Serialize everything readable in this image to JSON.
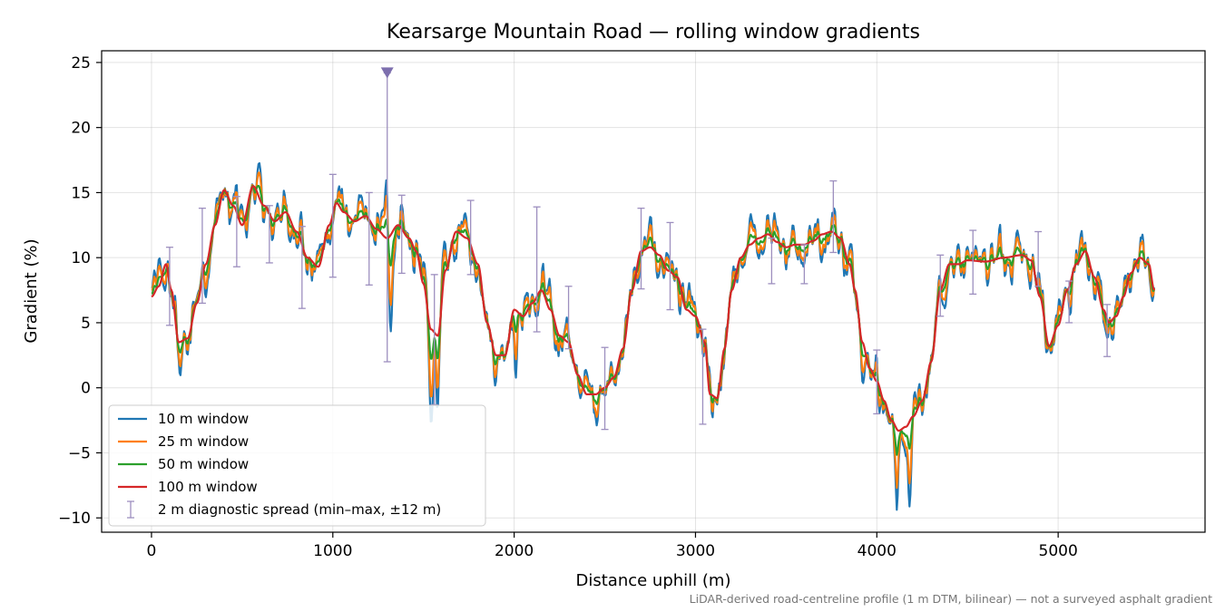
{
  "chart_data": {
    "type": "line",
    "title": "Kearsarge Mountain Road — rolling window gradients",
    "xlabel": "Distance uphill (m)",
    "ylabel": "Gradient (%)",
    "footnote": "LiDAR-derived road-centreline profile (1 m DTM, bilinear) — not a surveyed asphalt gradient",
    "xlim": [
      -275,
      5810
    ],
    "ylim": [
      -11.1,
      25.9
    ],
    "xticks": [
      0,
      1000,
      2000,
      3000,
      4000,
      5000
    ],
    "yticks": [
      -10,
      -5,
      0,
      5,
      10,
      15,
      20,
      25
    ],
    "xtick_labels": [
      "0",
      "1000",
      "2000",
      "3000",
      "4000",
      "5000"
    ],
    "ytick_labels": [
      "−10",
      "−5",
      "0",
      "5",
      "10",
      "15",
      "20",
      "25"
    ],
    "grid": true,
    "legend_position": "lower-left",
    "base_profile": [
      [
        0,
        7.0
      ],
      [
        40,
        7.8
      ],
      [
        80,
        9.5
      ],
      [
        110,
        7.5
      ],
      [
        150,
        3.5
      ],
      [
        200,
        3.8
      ],
      [
        250,
        6.5
      ],
      [
        300,
        9.5
      ],
      [
        350,
        12.5
      ],
      [
        400,
        15.2
      ],
      [
        450,
        14.0
      ],
      [
        500,
        12.5
      ],
      [
        560,
        15.5
      ],
      [
        620,
        14.0
      ],
      [
        680,
        12.8
      ],
      [
        740,
        13.5
      ],
      [
        800,
        12.0
      ],
      [
        860,
        10.0
      ],
      [
        920,
        9.3
      ],
      [
        980,
        12.5
      ],
      [
        1020,
        14.2
      ],
      [
        1060,
        13.5
      ],
      [
        1120,
        12.8
      ],
      [
        1180,
        13.2
      ],
      [
        1240,
        12.2
      ],
      [
        1300,
        11.5
      ],
      [
        1360,
        12.5
      ],
      [
        1420,
        11.5
      ],
      [
        1460,
        10.5
      ],
      [
        1500,
        8.0
      ],
      [
        1540,
        4.5
      ],
      [
        1580,
        4.0
      ],
      [
        1620,
        9.0
      ],
      [
        1680,
        12.0
      ],
      [
        1740,
        11.5
      ],
      [
        1800,
        9.5
      ],
      [
        1850,
        5.0
      ],
      [
        1900,
        2.5
      ],
      [
        1950,
        2.5
      ],
      [
        2000,
        6.0
      ],
      [
        2050,
        5.5
      ],
      [
        2100,
        6.5
      ],
      [
        2150,
        7.5
      ],
      [
        2200,
        6.0
      ],
      [
        2250,
        4.0
      ],
      [
        2300,
        3.5
      ],
      [
        2350,
        1.0
      ],
      [
        2400,
        -0.5
      ],
      [
        2450,
        -0.5
      ],
      [
        2500,
        0.0
      ],
      [
        2550,
        0.8
      ],
      [
        2600,
        3.0
      ],
      [
        2650,
        7.5
      ],
      [
        2700,
        10.5
      ],
      [
        2750,
        10.8
      ],
      [
        2800,
        10.2
      ],
      [
        2850,
        9.0
      ],
      [
        2900,
        8.5
      ],
      [
        2950,
        6.0
      ],
      [
        3000,
        5.5
      ],
      [
        3050,
        3.5
      ],
      [
        3080,
        -0.5
      ],
      [
        3120,
        -0.8
      ],
      [
        3160,
        3.0
      ],
      [
        3200,
        7.5
      ],
      [
        3250,
        10.0
      ],
      [
        3300,
        11.0
      ],
      [
        3350,
        11.5
      ],
      [
        3400,
        11.8
      ],
      [
        3450,
        11.2
      ],
      [
        3500,
        10.8
      ],
      [
        3550,
        11.0
      ],
      [
        3600,
        11.0
      ],
      [
        3650,
        11.3
      ],
      [
        3700,
        11.8
      ],
      [
        3750,
        12.0
      ],
      [
        3800,
        11.5
      ],
      [
        3850,
        9.5
      ],
      [
        3880,
        7.5
      ],
      [
        3920,
        3.5
      ],
      [
        3960,
        1.5
      ],
      [
        4000,
        0.5
      ],
      [
        4040,
        -1.0
      ],
      [
        4080,
        -2.5
      ],
      [
        4120,
        -3.3
      ],
      [
        4160,
        -3.0
      ],
      [
        4200,
        -2.2
      ],
      [
        4250,
        -1.0
      ],
      [
        4300,
        2.0
      ],
      [
        4350,
        7.5
      ],
      [
        4400,
        9.5
      ],
      [
        4450,
        9.5
      ],
      [
        4500,
        9.8
      ],
      [
        4600,
        9.7
      ],
      [
        4700,
        10.0
      ],
      [
        4800,
        10.2
      ],
      [
        4850,
        9.8
      ],
      [
        4900,
        7.0
      ],
      [
        4950,
        3.2
      ],
      [
        5000,
        4.8
      ],
      [
        5050,
        7.5
      ],
      [
        5100,
        9.5
      ],
      [
        5150,
        10.5
      ],
      [
        5200,
        8.5
      ],
      [
        5250,
        6.0
      ],
      [
        5280,
        5.0
      ],
      [
        5320,
        5.5
      ],
      [
        5360,
        7.0
      ],
      [
        5400,
        8.8
      ],
      [
        5450,
        10.0
      ],
      [
        5500,
        9.5
      ],
      [
        5530,
        7.5
      ]
    ],
    "series": [
      {
        "name": "10 m window",
        "window_m": 10,
        "noise": 1.1,
        "color": "#1f77b4"
      },
      {
        "name": "25 m window",
        "window_m": 25,
        "noise": 0.8,
        "color": "#ff7f0e"
      },
      {
        "name": "50 m window",
        "window_m": 50,
        "noise": 0.35,
        "color": "#2ca02c"
      },
      {
        "name": "100 m window",
        "window_m": 100,
        "noise": 0.0,
        "color": "#d62728"
      }
    ],
    "spread_series": {
      "name": "2 m diagnostic spread (min–max, ±12 m)",
      "color": "#9d8fbf",
      "points": [
        [
          100,
          4.8,
          10.8
        ],
        [
          280,
          6.5,
          13.8
        ],
        [
          470,
          9.3,
          14.7
        ],
        [
          650,
          9.6,
          14.0
        ],
        [
          830,
          6.1,
          12.4
        ],
        [
          1000,
          8.5,
          16.4
        ],
        [
          1200,
          7.9,
          15.0
        ],
        [
          1300,
          2.0,
          24.2
        ],
        [
          1380,
          8.8,
          14.8
        ],
        [
          1560,
          -1.3,
          8.7
        ],
        [
          1760,
          8.7,
          14.4
        ],
        [
          2125,
          4.3,
          13.9
        ],
        [
          2300,
          3.0,
          7.8
        ],
        [
          2500,
          -3.2,
          3.1
        ],
        [
          2700,
          7.6,
          13.8
        ],
        [
          2860,
          6.0,
          12.7
        ],
        [
          3040,
          -2.8,
          4.5
        ],
        [
          3420,
          8.0,
          11.5
        ],
        [
          3600,
          8.0,
          11.0
        ],
        [
          3760,
          10.4,
          15.9
        ],
        [
          4000,
          -2.0,
          2.9
        ],
        [
          4350,
          5.5,
          10.2
        ],
        [
          4530,
          7.2,
          12.1
        ],
        [
          4890,
          7.8,
          12.0
        ],
        [
          5060,
          5.0,
          8.2
        ],
        [
          5270,
          2.4,
          6.4
        ]
      ]
    },
    "annotations": [
      {
        "type": "marker",
        "shape": "down-triangle",
        "x": 1300,
        "y": 24.2,
        "color": "#7d6fae"
      }
    ]
  }
}
